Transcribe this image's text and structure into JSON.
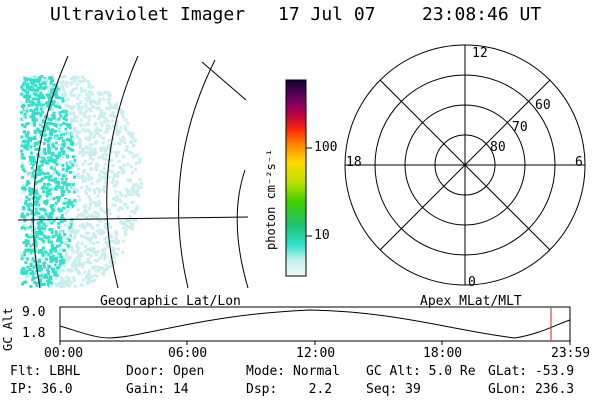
{
  "header": {
    "title": "Ultraviolet Imager",
    "date": "17 Jul 07",
    "time": "23:08:46 UT"
  },
  "colorbar": {
    "label": "photon cm⁻²s⁻¹",
    "ticks": [
      "100",
      "10"
    ]
  },
  "polar": {
    "top": "12",
    "bottom": "0",
    "left": "18",
    "right": "6",
    "latitudes": [
      "60",
      "70",
      "80"
    ]
  },
  "timeline": {
    "left_label": "Geographic Lat/Lon",
    "right_label": "Apex MLat/MLT",
    "axis_label": "GC Alt",
    "y_ticks": [
      "9.0",
      "1.8"
    ],
    "x_ticks": [
      "00:00",
      "06:00",
      "12:00",
      "18:00",
      "23:59"
    ]
  },
  "footer": {
    "row1": [
      {
        "label": "Flt:",
        "value": "LBHL"
      },
      {
        "label": "Door:",
        "value": "Open"
      },
      {
        "label": "Mode:",
        "value": "Normal"
      },
      {
        "label": "GC Alt:",
        "value": "5.0 Re"
      },
      {
        "label": "GLat:",
        "value": "-53.9"
      }
    ],
    "row2": [
      {
        "label": "IP:",
        "value": "36.0"
      },
      {
        "label": "Gain:",
        "value": "14"
      },
      {
        "label": "Dsp:",
        "value": "2.2"
      },
      {
        "label": "Seq:",
        "value": "39"
      },
      {
        "label": "GLon:",
        "value": "236.3"
      }
    ]
  },
  "colors": {
    "cyan": "#30e0c8",
    "light": "#c8eeee",
    "marker": "#cc2222"
  }
}
